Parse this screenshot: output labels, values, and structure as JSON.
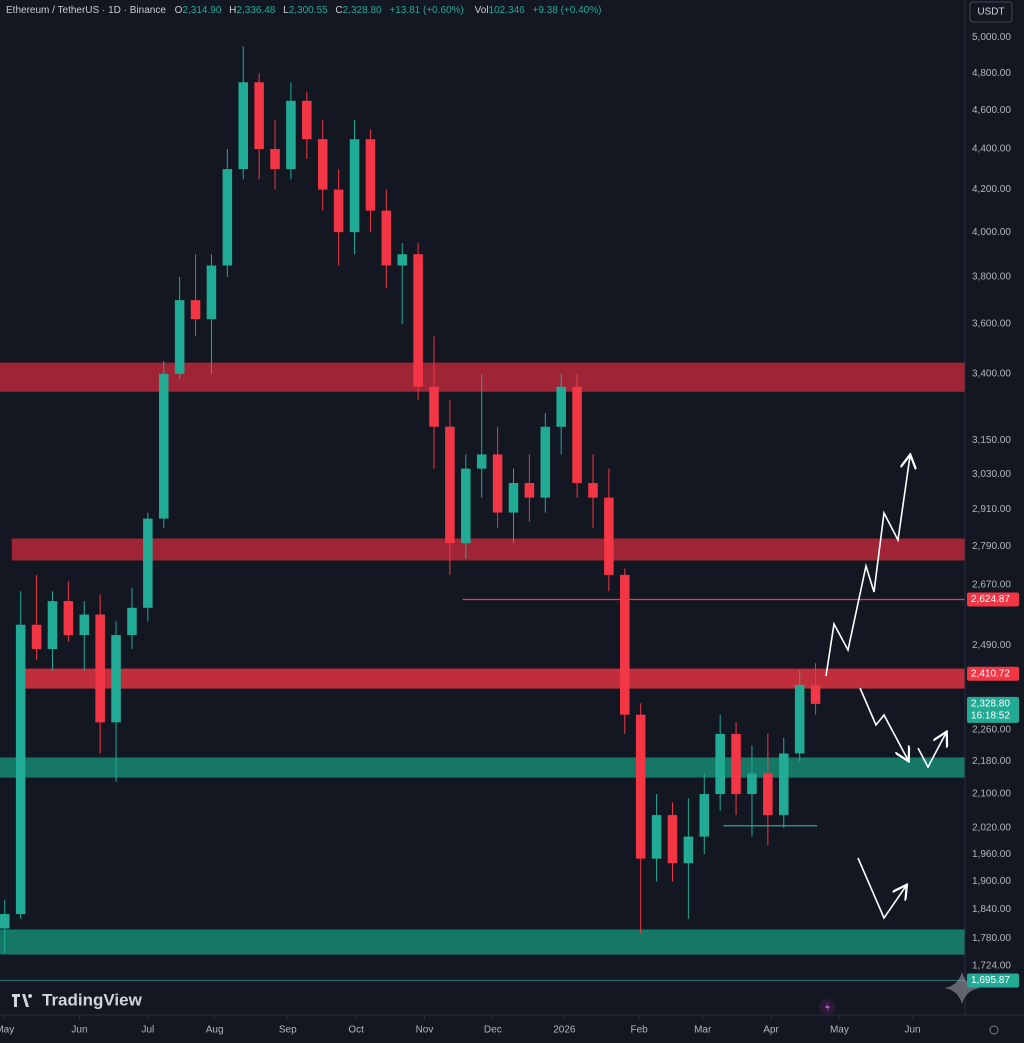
{
  "header": {
    "symbol": "Ethereum / TetherUS · 1D · Binance",
    "o_label": "O",
    "open": "2,314.90",
    "h_label": "H",
    "high": "2,336.48",
    "l_label": "L",
    "low": "2,300.55",
    "c_label": "C",
    "close": "2,328.80",
    "change": "+13.81 (+0.60%)",
    "vol_label": "Vol",
    "volume": "102.346",
    "vol_change": "+9.38 (+0.40%)"
  },
  "currency_button": "USDT",
  "brand": "TradingView",
  "countdown": "16:18:52",
  "chart_data": {
    "type": "candlestick",
    "log_scale": true,
    "grid": false,
    "ylim": [
      1630,
      5220
    ],
    "yticks": [
      {
        "value": 5000,
        "label": "5,000.00"
      },
      {
        "value": 4800,
        "label": "4,800.00"
      },
      {
        "value": 4600,
        "label": "4,600.00"
      },
      {
        "value": 4400,
        "label": "4,400.00"
      },
      {
        "value": 4200,
        "label": "4,200.00"
      },
      {
        "value": 4000,
        "label": "4,000.00"
      },
      {
        "value": 3800,
        "label": "3,800.00"
      },
      {
        "value": 3600,
        "label": "3,600.00"
      },
      {
        "value": 3400,
        "label": "3,400.00"
      },
      {
        "value": 3150,
        "label": "3,150.00"
      },
      {
        "value": 3030,
        "label": "3,030.00"
      },
      {
        "value": 2910,
        "label": "2,910.00"
      },
      {
        "value": 2790,
        "label": "2,790.00"
      },
      {
        "value": 2670,
        "label": "2,670.00"
      },
      {
        "value": 2490,
        "label": "2,490.00"
      },
      {
        "value": 2260,
        "label": "2,260.00"
      },
      {
        "value": 2180,
        "label": "2,180.00"
      },
      {
        "value": 2100,
        "label": "2,100.00"
      },
      {
        "value": 2020,
        "label": "2,020.00"
      },
      {
        "value": 1960,
        "label": "1,960.00"
      },
      {
        "value": 1900,
        "label": "1,900.00"
      },
      {
        "value": 1840,
        "label": "1,840.00"
      },
      {
        "value": 1780,
        "label": "1,780.00"
      },
      {
        "value": 1724,
        "label": "1,724.00"
      }
    ],
    "xlim": [
      -0.3,
      60.4
    ],
    "xticks": [
      {
        "value": 0,
        "label": "May"
      },
      {
        "value": 4.7,
        "label": "Jun"
      },
      {
        "value": 9.0,
        "label": "Jul"
      },
      {
        "value": 13.2,
        "label": "Aug"
      },
      {
        "value": 17.8,
        "label": "Sep"
      },
      {
        "value": 22.1,
        "label": "Oct"
      },
      {
        "value": 26.4,
        "label": "Nov"
      },
      {
        "value": 30.7,
        "label": "Dec"
      },
      {
        "value": 35.2,
        "label": "2026"
      },
      {
        "value": 39.9,
        "label": "Feb"
      },
      {
        "value": 43.9,
        "label": "Mar"
      },
      {
        "value": 48.2,
        "label": "Apr"
      },
      {
        "value": 52.5,
        "label": "May"
      },
      {
        "value": 57.1,
        "label": "Jun"
      }
    ],
    "x": [
      0,
      1,
      2,
      3,
      4,
      5,
      6,
      7,
      8,
      9,
      10,
      11,
      12,
      13,
      14,
      15,
      16,
      17,
      18,
      19,
      20,
      21,
      22,
      23,
      24,
      25,
      26,
      27,
      28,
      29,
      30,
      31,
      32,
      33,
      34,
      35,
      36,
      37,
      38,
      39,
      40,
      41,
      42,
      43,
      44,
      45,
      46,
      47,
      48,
      49,
      50,
      51
    ],
    "open": [
      1800,
      1830,
      2550,
      2480,
      2620,
      2520,
      2580,
      2280,
      2520,
      2600,
      2880,
      3400,
      3700,
      3620,
      3850,
      4300,
      4750,
      4400,
      4300,
      4650,
      4450,
      4200,
      4000,
      4450,
      4100,
      3850,
      3900,
      3350,
      3200,
      2800,
      3050,
      3100,
      2900,
      3000,
      2950,
      3200,
      3350,
      3000,
      2950,
      2700,
      2300,
      1950,
      2050,
      1940,
      2000,
      2100,
      2250,
      2100,
      2150,
      2050,
      2200,
      2380
    ],
    "high": [
      1860,
      2650,
      2700,
      2650,
      2680,
      2620,
      2640,
      2560,
      2660,
      2900,
      3450,
      3800,
      3900,
      3900,
      4400,
      4950,
      4800,
      4550,
      4750,
      4700,
      4550,
      4300,
      4550,
      4500,
      4200,
      3950,
      3950,
      3550,
      3300,
      3100,
      3400,
      3200,
      3050,
      3100,
      3250,
      3400,
      3400,
      3100,
      3050,
      2720,
      2330,
      2100,
      2080,
      2090,
      2150,
      2300,
      2280,
      2220,
      2250,
      2240,
      2420,
      2440
    ],
    "low": [
      1750,
      1820,
      2450,
      2420,
      2500,
      2420,
      2200,
      2130,
      2480,
      2560,
      2850,
      3380,
      3550,
      3400,
      3800,
      4250,
      4250,
      4200,
      4250,
      4350,
      4100,
      3850,
      3900,
      4000,
      3750,
      3600,
      3300,
      3050,
      2700,
      2750,
      2950,
      2850,
      2800,
      2870,
      2900,
      3100,
      2950,
      2850,
      2650,
      2250,
      1790,
      1900,
      1900,
      1820,
      1960,
      2060,
      2050,
      2000,
      1980,
      2020,
      2180,
      2300
    ],
    "close": [
      1830,
      2550,
      2480,
      2620,
      2520,
      2580,
      2280,
      2520,
      2600,
      2880,
      3400,
      3700,
      3620,
      3850,
      4300,
      4750,
      4400,
      4300,
      4650,
      4450,
      4200,
      4000,
      4450,
      4100,
      3850,
      3900,
      3350,
      3200,
      2800,
      3050,
      3100,
      2900,
      3000,
      2950,
      3200,
      3350,
      3000,
      2950,
      2700,
      2300,
      1950,
      2050,
      1940,
      2000,
      2100,
      2250,
      2100,
      2150,
      2050,
      2200,
      2380,
      2328.8
    ],
    "up_color": "#22ab94",
    "down_color": "#f23645",
    "zones": [
      {
        "low": 3331,
        "high": 3444,
        "from": -0.3,
        "color": "#b8283a"
      },
      {
        "low": 2745,
        "high": 2815,
        "from": 0.44,
        "color": "#b8283a"
      },
      {
        "low": 2370,
        "high": 2425,
        "from": 1.26,
        "color": "#e0323f"
      },
      {
        "low": 2140,
        "high": 2190,
        "from": -0.3,
        "color": "#168a72"
      },
      {
        "low": 1747,
        "high": 1798,
        "from": -0.3,
        "color": "#168a72"
      }
    ],
    "lines": [
      {
        "value": 2624.87,
        "from": 28.8,
        "to": 60.4,
        "color": "#f23645"
      },
      {
        "value": 2025,
        "from": 45.2,
        "to": 51.1,
        "color": "#22ab94"
      },
      {
        "value": 1695.87,
        "from": -0.3,
        "to": 60.4,
        "color": "#2a6f6a"
      }
    ],
    "price_labels": [
      {
        "value": 2624.87,
        "label": "2,624.87",
        "color": "#f23645"
      },
      {
        "value": 2410.72,
        "label": "2,410.72",
        "color": "#f23645"
      },
      {
        "value": 2328.8,
        "label": "2,328.80",
        "color": "#22ab94"
      },
      {
        "value": 1695.87,
        "label": "1,695.87",
        "color": "#22ab94"
      }
    ]
  }
}
